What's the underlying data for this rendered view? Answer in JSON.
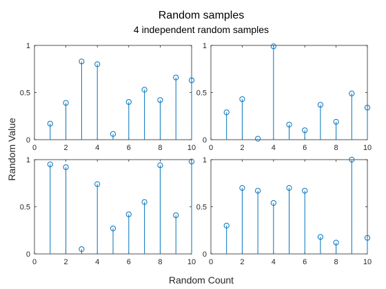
{
  "figure": {
    "title": "Random samples",
    "subtitle": "4 independent random samples",
    "xlabel": "Random Count",
    "ylabel": "Random Value"
  },
  "colors": {
    "stem": "#0072BD",
    "axis": "#262626",
    "background": "#ffffff"
  },
  "chart_data": [
    {
      "type": "stem",
      "x": [
        1,
        2,
        3,
        4,
        5,
        6,
        7,
        8,
        9,
        10
      ],
      "values": [
        0.17,
        0.39,
        0.83,
        0.8,
        0.06,
        0.4,
        0.53,
        0.42,
        0.66,
        0.63
      ],
      "xlim": [
        0,
        10
      ],
      "ylim": [
        0,
        1
      ],
      "xticks": [
        "0",
        "2",
        "4",
        "6",
        "8",
        "10"
      ],
      "yticks": [
        "0",
        "0.5",
        "1"
      ],
      "marker": "circle"
    },
    {
      "type": "stem",
      "x": [
        1,
        2,
        3,
        4,
        5,
        6,
        7,
        8,
        9,
        10
      ],
      "values": [
        0.29,
        0.43,
        0.01,
        0.99,
        0.16,
        0.1,
        0.37,
        0.19,
        0.49,
        0.34
      ],
      "xlim": [
        0,
        10
      ],
      "ylim": [
        0,
        1
      ],
      "xticks": [
        "0",
        "2",
        "4",
        "6",
        "8",
        "10"
      ],
      "yticks": [
        "0",
        "0.5",
        "1"
      ],
      "marker": "circle"
    },
    {
      "type": "stem",
      "x": [
        1,
        2,
        3,
        4,
        5,
        6,
        7,
        8,
        9,
        10
      ],
      "values": [
        0.95,
        0.92,
        0.05,
        0.74,
        0.27,
        0.42,
        0.55,
        0.94,
        0.41,
        0.98
      ],
      "xlim": [
        0,
        10
      ],
      "ylim": [
        0,
        1
      ],
      "xticks": [
        "0",
        "2",
        "4",
        "6",
        "8",
        "10"
      ],
      "yticks": [
        "0",
        "0.5",
        "1"
      ],
      "marker": "circle"
    },
    {
      "type": "stem",
      "x": [
        1,
        2,
        3,
        4,
        5,
        6,
        7,
        8,
        9,
        10
      ],
      "values": [
        0.3,
        0.7,
        0.67,
        0.54,
        0.7,
        0.67,
        0.18,
        0.12,
        1.0,
        0.17
      ],
      "xlim": [
        0,
        10
      ],
      "ylim": [
        0,
        1
      ],
      "xticks": [
        "0",
        "2",
        "4",
        "6",
        "8",
        "10"
      ],
      "yticks": [
        "0",
        "0.5",
        "1"
      ],
      "marker": "circle"
    }
  ]
}
